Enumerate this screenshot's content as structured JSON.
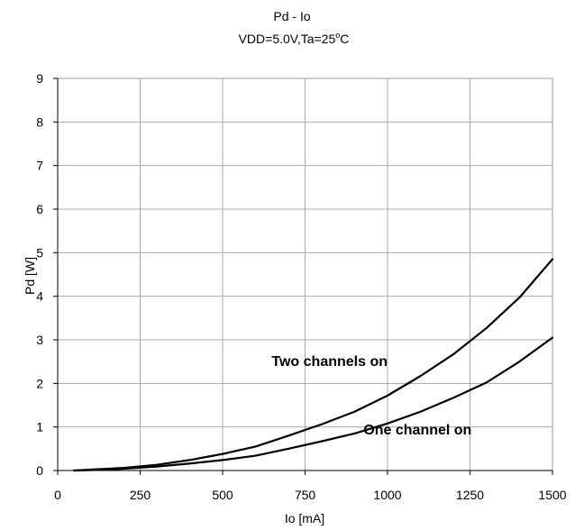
{
  "chart_data": {
    "type": "line",
    "title": "Pd - Io",
    "subtitle_parts": {
      "before": "VDD=5.0V,Ta=25",
      "superscript": "o",
      "after": "C"
    },
    "xlabel": "Io [mA]",
    "ylabel": "Pd [W]",
    "xlim": [
      0,
      1500
    ],
    "ylim": [
      0,
      9
    ],
    "xticks": [
      0,
      250,
      500,
      750,
      1000,
      1250,
      1500
    ],
    "yticks": [
      0,
      1,
      2,
      3,
      4,
      5,
      6,
      7,
      8,
      9
    ],
    "xtick_labels": [
      "0",
      "250",
      "500",
      "750",
      "1000",
      "1250",
      "1500"
    ],
    "ytick_labels": [
      "0",
      "1",
      "2",
      "3",
      "4",
      "5",
      "6",
      "7",
      "8",
      "9"
    ],
    "grid": true,
    "series": [
      {
        "name": "Two channels on",
        "x": [
          50,
          100,
          200,
          300,
          400,
          500,
          600,
          700,
          800,
          900,
          1000,
          1100,
          1200,
          1300,
          1400,
          1500
        ],
        "y": [
          0.0,
          0.02,
          0.06,
          0.13,
          0.24,
          0.38,
          0.55,
          0.8,
          1.06,
          1.35,
          1.72,
          2.17,
          2.67,
          3.27,
          3.97,
          4.85
        ]
      },
      {
        "name": "One channel on",
        "x": [
          50,
          100,
          200,
          300,
          400,
          500,
          600,
          700,
          800,
          900,
          1000,
          1100,
          1200,
          1300,
          1400,
          1500
        ],
        "y": [
          0.0,
          0.01,
          0.04,
          0.09,
          0.16,
          0.24,
          0.34,
          0.5,
          0.67,
          0.85,
          1.08,
          1.35,
          1.67,
          2.02,
          2.5,
          3.05
        ]
      }
    ],
    "annotations": [
      {
        "text": "Two channels on",
        "x": 1000,
        "y": 2.4
      },
      {
        "text": "One channel on",
        "x": 1255,
        "y": 0.83
      }
    ]
  }
}
